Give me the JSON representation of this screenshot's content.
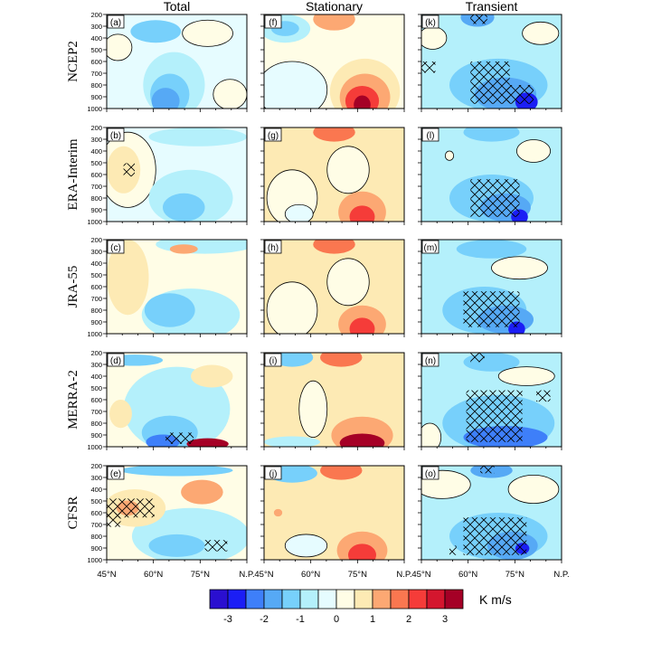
{
  "chart_data": {
    "type": "heatmap",
    "colorbar": {
      "colors": [
        "#2a0fd0",
        "#1b1ef5",
        "#3e7ff9",
        "#56a9f5",
        "#77d0fb",
        "#b4f0fb",
        "#e6fcff",
        "#fffde6",
        "#fdeab4",
        "#fca873",
        "#fa7750",
        "#f53c39",
        "#d4162e",
        "#a50026"
      ],
      "tick_labels": [
        "-3",
        "-2",
        "-1",
        "0",
        "1",
        "2",
        "3"
      ],
      "unit": "K m/s"
    },
    "columns": [
      "Total",
      "Stationary",
      "Transient"
    ],
    "rows": [
      "NCEP2",
      "ERA-Interim",
      "JRA-55",
      "MERRA-2",
      "CFSR"
    ],
    "y_ticks": [
      "200",
      "300",
      "400",
      "500",
      "600",
      "700",
      "800",
      "900",
      "1000"
    ],
    "x_ticks": [
      "45°N",
      "60°N",
      "75°N",
      "N.P."
    ],
    "panels": [
      {
        "label": "(a)",
        "bg": 6,
        "blobs": [
          [
            0.35,
            0.18,
            0.18,
            0.12,
            4
          ],
          [
            0.48,
            0.75,
            0.22,
            0.35,
            5
          ],
          [
            0.45,
            0.85,
            0.14,
            0.22,
            4
          ],
          [
            0.42,
            0.92,
            0.1,
            0.14,
            3
          ],
          [
            0.08,
            0.35,
            0.1,
            0.14,
            7
          ],
          [
            0.72,
            0.2,
            0.18,
            0.14,
            7
          ],
          [
            0.88,
            0.85,
            0.12,
            0.16,
            7
          ]
        ],
        "hatch": []
      },
      {
        "label": "(b)",
        "bg": 6,
        "blobs": [
          [
            0.15,
            0.45,
            0.2,
            0.4,
            7
          ],
          [
            0.12,
            0.45,
            0.12,
            0.25,
            8
          ],
          [
            0.6,
            0.75,
            0.3,
            0.3,
            5
          ],
          [
            0.55,
            0.85,
            0.15,
            0.15,
            4
          ],
          [
            0.65,
            0.1,
            0.35,
            0.1,
            5
          ]
        ],
        "hatch": [
          [
            0.12,
            0.38,
            0.08,
            0.14
          ]
        ]
      },
      {
        "label": "(c)",
        "bg": 7,
        "blobs": [
          [
            0.15,
            0.4,
            0.15,
            0.4,
            8
          ],
          [
            0.6,
            0.8,
            0.35,
            0.28,
            5
          ],
          [
            0.45,
            0.75,
            0.18,
            0.18,
            4
          ],
          [
            0.7,
            0.05,
            0.35,
            0.1,
            5
          ],
          [
            0.55,
            0.1,
            0.1,
            0.05,
            9
          ]
        ],
        "hatch": []
      },
      {
        "label": "(d)",
        "bg": 7,
        "blobs": [
          [
            0.5,
            0.6,
            0.38,
            0.45,
            5
          ],
          [
            0.2,
            0.08,
            0.2,
            0.06,
            4
          ],
          [
            0.45,
            0.85,
            0.2,
            0.18,
            4
          ],
          [
            0.4,
            0.95,
            0.12,
            0.08,
            2
          ],
          [
            0.75,
            0.25,
            0.15,
            0.12,
            8
          ],
          [
            0.72,
            0.97,
            0.15,
            0.06,
            13
          ],
          [
            0.1,
            0.65,
            0.08,
            0.15,
            8
          ]
        ],
        "hatch": [
          [
            0.42,
            0.85,
            0.2,
            0.12
          ]
        ]
      },
      {
        "label": "(e)",
        "bg": 7,
        "blobs": [
          [
            0.6,
            0.75,
            0.42,
            0.3,
            5
          ],
          [
            0.5,
            0.85,
            0.2,
            0.12,
            4
          ],
          [
            0.68,
            0.28,
            0.15,
            0.13,
            9
          ],
          [
            0.2,
            0.45,
            0.22,
            0.2,
            8
          ],
          [
            0.15,
            0.45,
            0.08,
            0.08,
            9
          ],
          [
            0.5,
            0.05,
            0.4,
            0.06,
            4
          ]
        ],
        "hatch": [
          [
            0.0,
            0.35,
            0.34,
            0.2
          ],
          [
            0.0,
            0.5,
            0.1,
            0.15
          ],
          [
            0.7,
            0.79,
            0.16,
            0.12
          ]
        ]
      },
      {
        "label": "(f)",
        "bg": 7,
        "blobs": [
          [
            0.15,
            0.15,
            0.18,
            0.15,
            5
          ],
          [
            0.15,
            0.15,
            0.1,
            0.08,
            4
          ],
          [
            0.2,
            0.8,
            0.25,
            0.3,
            6
          ],
          [
            0.5,
            0.05,
            0.15,
            0.12,
            9
          ],
          [
            0.72,
            0.82,
            0.25,
            0.35,
            8
          ],
          [
            0.72,
            0.88,
            0.18,
            0.25,
            9
          ],
          [
            0.7,
            0.92,
            0.12,
            0.16,
            11
          ],
          [
            0.7,
            0.96,
            0.06,
            0.1,
            13
          ]
        ],
        "hatch": []
      },
      {
        "label": "(g)",
        "bg": 8,
        "blobs": [
          [
            0.2,
            0.75,
            0.18,
            0.3,
            7
          ],
          [
            0.6,
            0.45,
            0.15,
            0.25,
            7
          ],
          [
            0.5,
            0.05,
            0.15,
            0.1,
            10
          ],
          [
            0.7,
            0.9,
            0.17,
            0.22,
            9
          ],
          [
            0.7,
            0.95,
            0.09,
            0.12,
            11
          ],
          [
            0.25,
            0.92,
            0.1,
            0.1,
            6
          ]
        ],
        "hatch": []
      },
      {
        "label": "(h)",
        "bg": 8,
        "blobs": [
          [
            0.2,
            0.75,
            0.18,
            0.3,
            7
          ],
          [
            0.6,
            0.45,
            0.15,
            0.25,
            7
          ],
          [
            0.5,
            0.05,
            0.15,
            0.1,
            10
          ],
          [
            0.7,
            0.9,
            0.17,
            0.2,
            9
          ],
          [
            0.7,
            0.95,
            0.09,
            0.12,
            11
          ]
        ],
        "hatch": []
      },
      {
        "label": "(i)",
        "bg": 8,
        "blobs": [
          [
            0.2,
            0.05,
            0.15,
            0.1,
            4
          ],
          [
            0.35,
            0.6,
            0.1,
            0.3,
            7
          ],
          [
            0.55,
            0.05,
            0.15,
            0.1,
            10
          ],
          [
            0.7,
            0.88,
            0.22,
            0.2,
            9
          ],
          [
            0.7,
            0.96,
            0.16,
            0.1,
            13
          ],
          [
            0.2,
            0.95,
            0.2,
            0.06,
            5
          ]
        ],
        "hatch": []
      },
      {
        "label": "(j)",
        "bg": 8,
        "blobs": [
          [
            0.2,
            0.08,
            0.18,
            0.1,
            4
          ],
          [
            0.3,
            0.85,
            0.15,
            0.12,
            6
          ],
          [
            0.55,
            0.05,
            0.15,
            0.1,
            10
          ],
          [
            0.7,
            0.9,
            0.18,
            0.2,
            9
          ],
          [
            0.7,
            0.95,
            0.1,
            0.12,
            11
          ],
          [
            0.1,
            0.5,
            0.03,
            0.04,
            9
          ]
        ],
        "hatch": []
      },
      {
        "label": "(k)",
        "bg": 5,
        "blobs": [
          [
            0.4,
            0.03,
            0.12,
            0.1,
            3
          ],
          [
            0.55,
            0.75,
            0.35,
            0.28,
            4
          ],
          [
            0.6,
            0.85,
            0.22,
            0.18,
            3
          ],
          [
            0.75,
            0.93,
            0.08,
            0.1,
            1
          ],
          [
            0.85,
            0.2,
            0.13,
            0.12,
            7
          ],
          [
            0.08,
            0.25,
            0.1,
            0.12,
            7
          ]
        ],
        "hatch": [
          [
            0.35,
            0.0,
            0.12,
            0.1
          ],
          [
            0.0,
            0.5,
            0.1,
            0.12
          ],
          [
            0.35,
            0.5,
            0.28,
            0.45
          ],
          [
            0.6,
            0.75,
            0.2,
            0.2
          ]
        ]
      },
      {
        "label": "(l)",
        "bg": 5,
        "blobs": [
          [
            0.5,
            0.05,
            0.2,
            0.1,
            4
          ],
          [
            0.5,
            0.75,
            0.3,
            0.25,
            4
          ],
          [
            0.6,
            0.85,
            0.18,
            0.15,
            3
          ],
          [
            0.7,
            0.95,
            0.06,
            0.08,
            1
          ],
          [
            0.8,
            0.25,
            0.12,
            0.12,
            7
          ],
          [
            0.2,
            0.3,
            0.03,
            0.05,
            7
          ]
        ],
        "hatch": [
          [
            0.35,
            0.55,
            0.35,
            0.4
          ]
        ]
      },
      {
        "label": "(m)",
        "bg": 5,
        "blobs": [
          [
            0.5,
            0.1,
            0.25,
            0.1,
            4
          ],
          [
            0.45,
            0.75,
            0.3,
            0.25,
            4
          ],
          [
            0.6,
            0.85,
            0.2,
            0.15,
            3
          ],
          [
            0.68,
            0.95,
            0.06,
            0.08,
            1
          ],
          [
            0.7,
            0.3,
            0.2,
            0.12,
            7
          ]
        ],
        "hatch": [
          [
            0.3,
            0.55,
            0.4,
            0.38
          ]
        ]
      },
      {
        "label": "(n)",
        "bg": 5,
        "blobs": [
          [
            0.5,
            0.1,
            0.2,
            0.1,
            4
          ],
          [
            0.55,
            0.75,
            0.4,
            0.3,
            4
          ],
          [
            0.6,
            0.9,
            0.3,
            0.12,
            2
          ],
          [
            0.75,
            0.25,
            0.2,
            0.1,
            7
          ],
          [
            0.06,
            0.9,
            0.08,
            0.15,
            7
          ]
        ],
        "hatch": [
          [
            0.35,
            0.0,
            0.1,
            0.1
          ],
          [
            0.32,
            0.4,
            0.4,
            0.55
          ],
          [
            0.82,
            0.4,
            0.1,
            0.12
          ]
        ]
      },
      {
        "label": "(o)",
        "bg": 5,
        "blobs": [
          [
            0.5,
            0.05,
            0.15,
            0.08,
            3
          ],
          [
            0.55,
            0.75,
            0.35,
            0.25,
            4
          ],
          [
            0.65,
            0.85,
            0.18,
            0.15,
            3
          ],
          [
            0.72,
            0.88,
            0.05,
            0.06,
            1
          ],
          [
            0.15,
            0.2,
            0.2,
            0.15,
            7
          ],
          [
            0.8,
            0.25,
            0.18,
            0.15,
            7
          ]
        ],
        "hatch": [
          [
            0.3,
            0.55,
            0.45,
            0.4
          ],
          [
            0.2,
            0.85,
            0.05,
            0.1
          ],
          [
            0.42,
            0.0,
            0.1,
            0.08
          ]
        ]
      }
    ]
  }
}
